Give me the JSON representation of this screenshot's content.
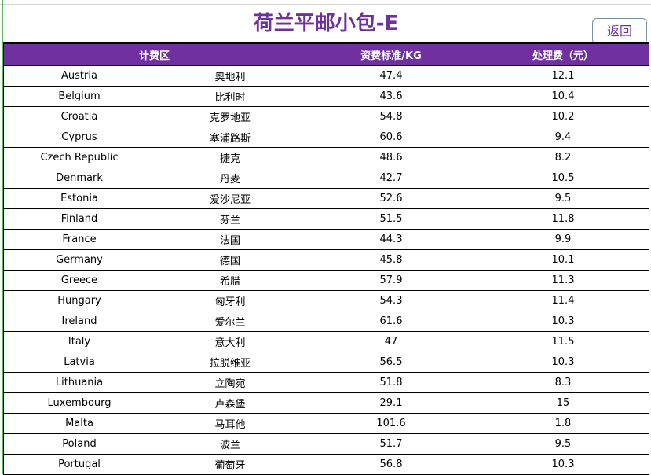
{
  "title": "荷兰平邮小包-E",
  "back_button": "返回",
  "headers": {
    "zone": "计费区",
    "rate": "资费标准/KG",
    "fee": "处理费（元）"
  },
  "colors": {
    "header_bg": "#7030A0",
    "title": "#7030A0"
  },
  "rows": [
    {
      "en": "Austria",
      "cn": "奥地利",
      "rate": "47.4",
      "fee": "12.1"
    },
    {
      "en": "Belgium",
      "cn": "比利时",
      "rate": "43.6",
      "fee": "10.4"
    },
    {
      "en": "Croatia",
      "cn": "克罗地亚",
      "rate": "54.8",
      "fee": "10.2"
    },
    {
      "en": "Cyprus",
      "cn": "塞浦路斯",
      "rate": "60.6",
      "fee": "9.4"
    },
    {
      "en": "Czech Republic",
      "cn": "捷克",
      "rate": "48.6",
      "fee": "8.2"
    },
    {
      "en": "Denmark",
      "cn": "丹麦",
      "rate": "42.7",
      "fee": "10.5"
    },
    {
      "en": "Estonia",
      "cn": "爱沙尼亚",
      "rate": "52.6",
      "fee": "9.5"
    },
    {
      "en": "Finland",
      "cn": "芬兰",
      "rate": "51.5",
      "fee": "11.8"
    },
    {
      "en": "France",
      "cn": "法国",
      "rate": "44.3",
      "fee": "9.9"
    },
    {
      "en": "Germany",
      "cn": "德国",
      "rate": "45.8",
      "fee": "10.1"
    },
    {
      "en": "Greece",
      "cn": "希腊",
      "rate": "57.9",
      "fee": "11.3"
    },
    {
      "en": "Hungary",
      "cn": "匈牙利",
      "rate": "54.3",
      "fee": "11.4"
    },
    {
      "en": "Ireland",
      "cn": "爱尔兰",
      "rate": "61.6",
      "fee": "10.3"
    },
    {
      "en": "Italy",
      "cn": "意大利",
      "rate": "47",
      "fee": "11.5"
    },
    {
      "en": "Latvia",
      "cn": "拉脱维亚",
      "rate": "56.5",
      "fee": "10.3"
    },
    {
      "en": "Lithuania",
      "cn": "立陶宛",
      "rate": "51.8",
      "fee": "8.3"
    },
    {
      "en": "Luxembourg",
      "cn": "卢森堡",
      "rate": "29.1",
      "fee": "15"
    },
    {
      "en": "Malta",
      "cn": "马耳他",
      "rate": "101.6",
      "fee": "1.8"
    },
    {
      "en": "Poland",
      "cn": "波兰",
      "rate": "51.7",
      "fee": "9.5"
    },
    {
      "en": "Portugal",
      "cn": "葡萄牙",
      "rate": "56.8",
      "fee": "10.3"
    }
  ]
}
